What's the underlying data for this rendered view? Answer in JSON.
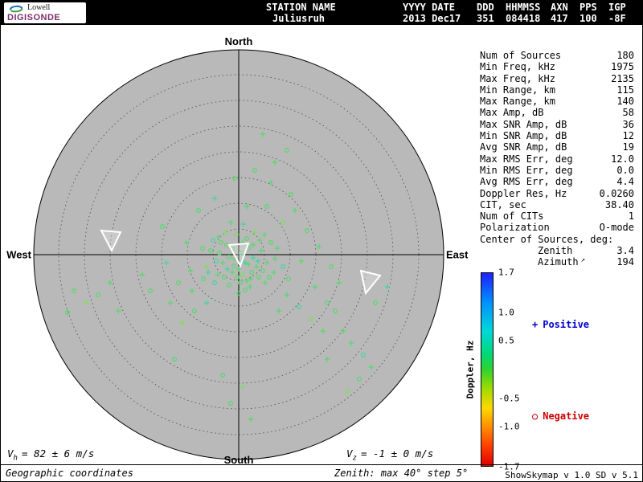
{
  "header": {
    "logo": {
      "brand_top": "Lowell",
      "brand_bottom": "DIGISONDE"
    },
    "fields": [
      {
        "label": "STATION NAME",
        "value": "Juliusruh"
      },
      {
        "label": "YYYY DATE",
        "value": "2013 Dec17"
      },
      {
        "label": "DDD",
        "value": "351"
      },
      {
        "label": "HHMMSS",
        "value": "084418"
      },
      {
        "label": "AXN",
        "value": "417"
      },
      {
        "label": "PPS",
        "value": "100"
      },
      {
        "label": "IGP",
        "value": "-8F"
      }
    ]
  },
  "params": [
    {
      "label": "Num of Sources",
      "value": "180"
    },
    {
      "label": "Min Freq, kHz",
      "value": "1975"
    },
    {
      "label": "Max Freq, kHz",
      "value": "2135"
    },
    {
      "label": "Min Range, km",
      "value": "115"
    },
    {
      "label": "Max Range, km",
      "value": "140"
    },
    {
      "label": "Max Amp, dB",
      "value": "58"
    },
    {
      "label": "Max SNR Amp, dB",
      "value": "36"
    },
    {
      "label": "Min SNR Amp, dB",
      "value": "12"
    },
    {
      "label": "Avg SNR Amp, dB",
      "value": "19"
    },
    {
      "label": "Max RMS Err, deg",
      "value": "12.0"
    },
    {
      "label": "Min RMS Err, deg",
      "value": "0.0"
    },
    {
      "label": "Avg RMS Err, deg",
      "value": "4.4"
    },
    {
      "label": "Doppler Res, Hz",
      "value": "0.0260"
    },
    {
      "label": "CIT, sec",
      "value": "38.40"
    },
    {
      "label": "Num of CITs",
      "value": "1"
    },
    {
      "label": "Polarization",
      "value": "O-mode"
    },
    {
      "label": "Center of Sources, deg:",
      "value": ""
    },
    {
      "label": "Zenith",
      "value": "3.4",
      "indent": true
    },
    {
      "label": "Azimuth",
      "value": "194",
      "indent": true,
      "icon": "azimuth-arrow-icon",
      "glyph": "↗"
    }
  ],
  "footer": {
    "vh": {
      "symbol": "V",
      "sub": "h",
      "text": "= 82 ± 6 m/s"
    },
    "vz": {
      "symbol": "V",
      "sub": "z",
      "text": "= -1 ± 0 m/s"
    },
    "coords_label": "Geographic coordinates",
    "zenith_note": "Zenith: max 40°  step 5°",
    "version": "ShowSkymap v 1.0  SD v 5.1"
  },
  "chart_data": {
    "type": "scatter",
    "projection": "polar-skymap",
    "directions": {
      "north": "North",
      "south": "South",
      "east": "East",
      "west": "West"
    },
    "zenith_max_deg": 40,
    "zenith_step_deg": 5,
    "rings_deg": [
      5,
      10,
      15,
      20,
      25,
      30,
      35,
      40
    ],
    "colorbar": {
      "label": "Doppler, Hz",
      "range": [
        -1.7,
        1.7
      ],
      "tick_values": [
        1.7,
        1.0,
        0.5,
        -0.5,
        -1.0,
        -1.7
      ],
      "ticks": [
        "1.7",
        "1.0",
        "0.5",
        "-0.5",
        "-1.0",
        "-1.7"
      ]
    },
    "legend": {
      "positive": {
        "marker": "+",
        "label": "Positive",
        "color": "#0000cc"
      },
      "negative": {
        "marker": "○",
        "label": "Negative",
        "color": "#cc0000"
      }
    },
    "marker_meaning": {
      "plus": "positive Doppler source",
      "circle": "negative Doppler source"
    },
    "point_format": "[dx_px, dy_px, marker(0=plus,1=circle), color_index]; offsets from plot center, 256 px radius = 40 deg zenith",
    "point_colors": [
      "#57d96b",
      "#43d5a2",
      "#7de05c",
      "#3ecdc9"
    ],
    "points": [
      [
        -5,
        5,
        0,
        0
      ],
      [
        3,
        -2,
        1,
        0
      ],
      [
        8,
        10,
        0,
        1
      ],
      [
        -12,
        3,
        1,
        0
      ],
      [
        0,
        18,
        0,
        0
      ],
      [
        5,
        25,
        1,
        2
      ],
      [
        -8,
        22,
        0,
        0
      ],
      [
        12,
        -8,
        1,
        0
      ],
      [
        18,
        4,
        0,
        1
      ],
      [
        -20,
        10,
        0,
        0
      ],
      [
        -15,
        -12,
        1,
        0
      ],
      [
        22,
        15,
        0,
        0
      ],
      [
        2,
        35,
        1,
        0
      ],
      [
        -3,
        -25,
        0,
        2
      ],
      [
        10,
        -20,
        1,
        0
      ],
      [
        28,
        -5,
        0,
        0
      ],
      [
        -28,
        8,
        1,
        1
      ],
      [
        15,
        30,
        0,
        0
      ],
      [
        -18,
        28,
        1,
        0
      ],
      [
        35,
        10,
        0,
        0
      ],
      [
        -35,
        -5,
        1,
        0
      ],
      [
        6,
        -38,
        0,
        1
      ],
      [
        25,
        28,
        1,
        0
      ],
      [
        -25,
        -22,
        0,
        0
      ],
      [
        40,
        -15,
        1,
        0
      ],
      [
        -40,
        15,
        0,
        2
      ],
      [
        8,
        44,
        1,
        0
      ],
      [
        -10,
        -40,
        0,
        0
      ],
      [
        33,
        35,
        0,
        0
      ],
      [
        -30,
        35,
        1,
        1
      ],
      [
        45,
        5,
        0,
        0
      ],
      [
        -45,
        -8,
        1,
        0
      ],
      [
        12,
        12,
        0,
        0
      ],
      [
        -6,
        14,
        1,
        0
      ],
      [
        20,
        -28,
        0,
        2
      ],
      [
        -22,
        -15,
        1,
        0
      ],
      [
        30,
        20,
        1,
        0
      ],
      [
        4,
        8,
        0,
        0
      ],
      [
        -14,
        18,
        0,
        1
      ],
      [
        16,
        22,
        1,
        0
      ],
      [
        26,
        -18,
        0,
        0
      ],
      [
        -26,
        25,
        0,
        0
      ],
      [
        38,
        28,
        1,
        0
      ],
      [
        -38,
        22,
        0,
        1
      ],
      [
        10,
        33,
        0,
        0
      ],
      [
        -2,
        28,
        1,
        0
      ],
      [
        18,
        -12,
        0,
        0
      ],
      [
        -16,
        -28,
        1,
        2
      ],
      [
        44,
        22,
        0,
        0
      ],
      [
        -44,
        30,
        1,
        0
      ],
      [
        5,
        -15,
        0,
        0
      ],
      [
        -8,
        -8,
        1,
        0
      ],
      [
        24,
        8,
        0,
        1
      ],
      [
        -24,
        -2,
        1,
        0
      ],
      [
        14,
        40,
        0,
        0
      ],
      [
        -12,
        38,
        1,
        0
      ],
      [
        32,
        -25,
        0,
        0
      ],
      [
        -32,
        -18,
        1,
        1
      ],
      [
        48,
        -8,
        0,
        0
      ],
      [
        0,
        48,
        1,
        0
      ],
      [
        -60,
        20,
        0,
        0
      ],
      [
        -75,
        35,
        1,
        0
      ],
      [
        -90,
        10,
        0,
        1
      ],
      [
        -110,
        45,
        1,
        0
      ],
      [
        -65,
        -15,
        0,
        0
      ],
      [
        -85,
        60,
        0,
        0
      ],
      [
        55,
        -40,
        1,
        2
      ],
      [
        70,
        -55,
        0,
        0
      ],
      [
        85,
        -30,
        1,
        0
      ],
      [
        60,
        50,
        0,
        0
      ],
      [
        75,
        65,
        1,
        1
      ],
      [
        95,
        40,
        0,
        0
      ],
      [
        110,
        60,
        1,
        0
      ],
      [
        50,
        70,
        0,
        0
      ],
      [
        -55,
        70,
        1,
        0
      ],
      [
        -70,
        85,
        0,
        2
      ],
      [
        65,
        -75,
        1,
        0
      ],
      [
        40,
        -90,
        0,
        0
      ],
      [
        20,
        -105,
        1,
        0
      ],
      [
        -30,
        -70,
        0,
        1
      ],
      [
        -50,
        -55,
        1,
        0
      ],
      [
        100,
        -10,
        0,
        0
      ],
      [
        115,
        15,
        1,
        0
      ],
      [
        125,
        35,
        0,
        0
      ],
      [
        90,
        80,
        1,
        2
      ],
      [
        105,
        95,
        0,
        0
      ],
      [
        -95,
        -35,
        1,
        0
      ],
      [
        -120,
        25,
        0,
        0
      ],
      [
        55,
        15,
        1,
        1
      ],
      [
        -58,
        45,
        0,
        0
      ],
      [
        62,
        30,
        1,
        0
      ],
      [
        78,
        8,
        0,
        0
      ],
      [
        35,
        -60,
        1,
        0
      ],
      [
        -40,
        60,
        0,
        1
      ],
      [
        120,
        70,
        1,
        0
      ],
      [
        -160,
        35,
        0,
        0
      ],
      [
        -175,
        50,
        1,
        0
      ],
      [
        -190,
        60,
        0,
        2
      ],
      [
        -205,
        45,
        1,
        0
      ],
      [
        -150,
        70,
        0,
        0
      ],
      [
        -213,
        72,
        1,
        0
      ],
      [
        140,
        110,
        0,
        0
      ],
      [
        155,
        125,
        1,
        1
      ],
      [
        165,
        140,
        0,
        0
      ],
      [
        150,
        155,
        1,
        0
      ],
      [
        130,
        95,
        0,
        0
      ],
      [
        -20,
        150,
        1,
        0
      ],
      [
        5,
        165,
        0,
        2
      ],
      [
        -10,
        185,
        1,
        0
      ],
      [
        15,
        205,
        0,
        0
      ],
      [
        170,
        60,
        1,
        0
      ],
      [
        185,
        40,
        0,
        1
      ],
      [
        60,
        -130,
        1,
        0
      ],
      [
        30,
        -150,
        0,
        0
      ],
      [
        -80,
        130,
        1,
        0
      ],
      [
        110,
        130,
        0,
        0
      ],
      [
        135,
        170,
        1,
        2
      ],
      [
        10,
        -60,
        0,
        0
      ],
      [
        -5,
        -95,
        1,
        0
      ],
      [
        45,
        -115,
        0,
        0
      ]
    ],
    "arrow_markers": [
      [
        [
          -171,
          -30
        ],
        [
          -147,
          -28
        ],
        [
          -158,
          -5
        ]
      ],
      [
        [
          -12,
          -12
        ],
        [
          12,
          -14
        ],
        [
          2,
          14
        ]
      ],
      [
        [
          152,
          20
        ],
        [
          176,
          26
        ],
        [
          158,
          48
        ]
      ]
    ]
  }
}
